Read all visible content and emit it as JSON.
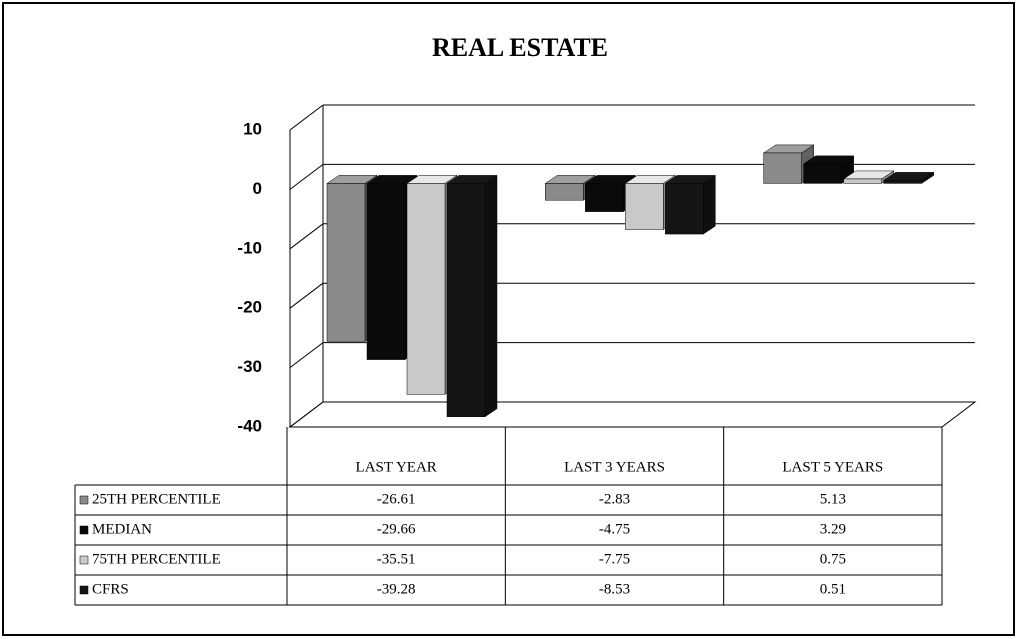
{
  "chart_data": {
    "type": "bar",
    "title": "REAL ESTATE",
    "categories": [
      "LAST YEAR",
      "LAST 3 YEARS",
      "LAST 5 YEARS"
    ],
    "series": [
      {
        "name": "25TH PERCENTILE",
        "color": "#8a8a8a",
        "values": [
          -26.61,
          -2.83,
          5.13
        ]
      },
      {
        "name": "MEDIAN",
        "color": "#0a0a0a",
        "values": [
          -29.66,
          -4.75,
          3.29
        ]
      },
      {
        "name": "75TH PERCENTILE",
        "color": "#c9c9c9",
        "values": [
          -35.51,
          -7.75,
          0.75
        ]
      },
      {
        "name": "CFRS",
        "color": "#151515",
        "values": [
          -39.28,
          -8.53,
          0.51
        ]
      }
    ],
    "ylim": [
      -40,
      10
    ],
    "yticks": [
      10,
      0,
      -10,
      -20,
      -30,
      -40
    ],
    "grid": true
  }
}
